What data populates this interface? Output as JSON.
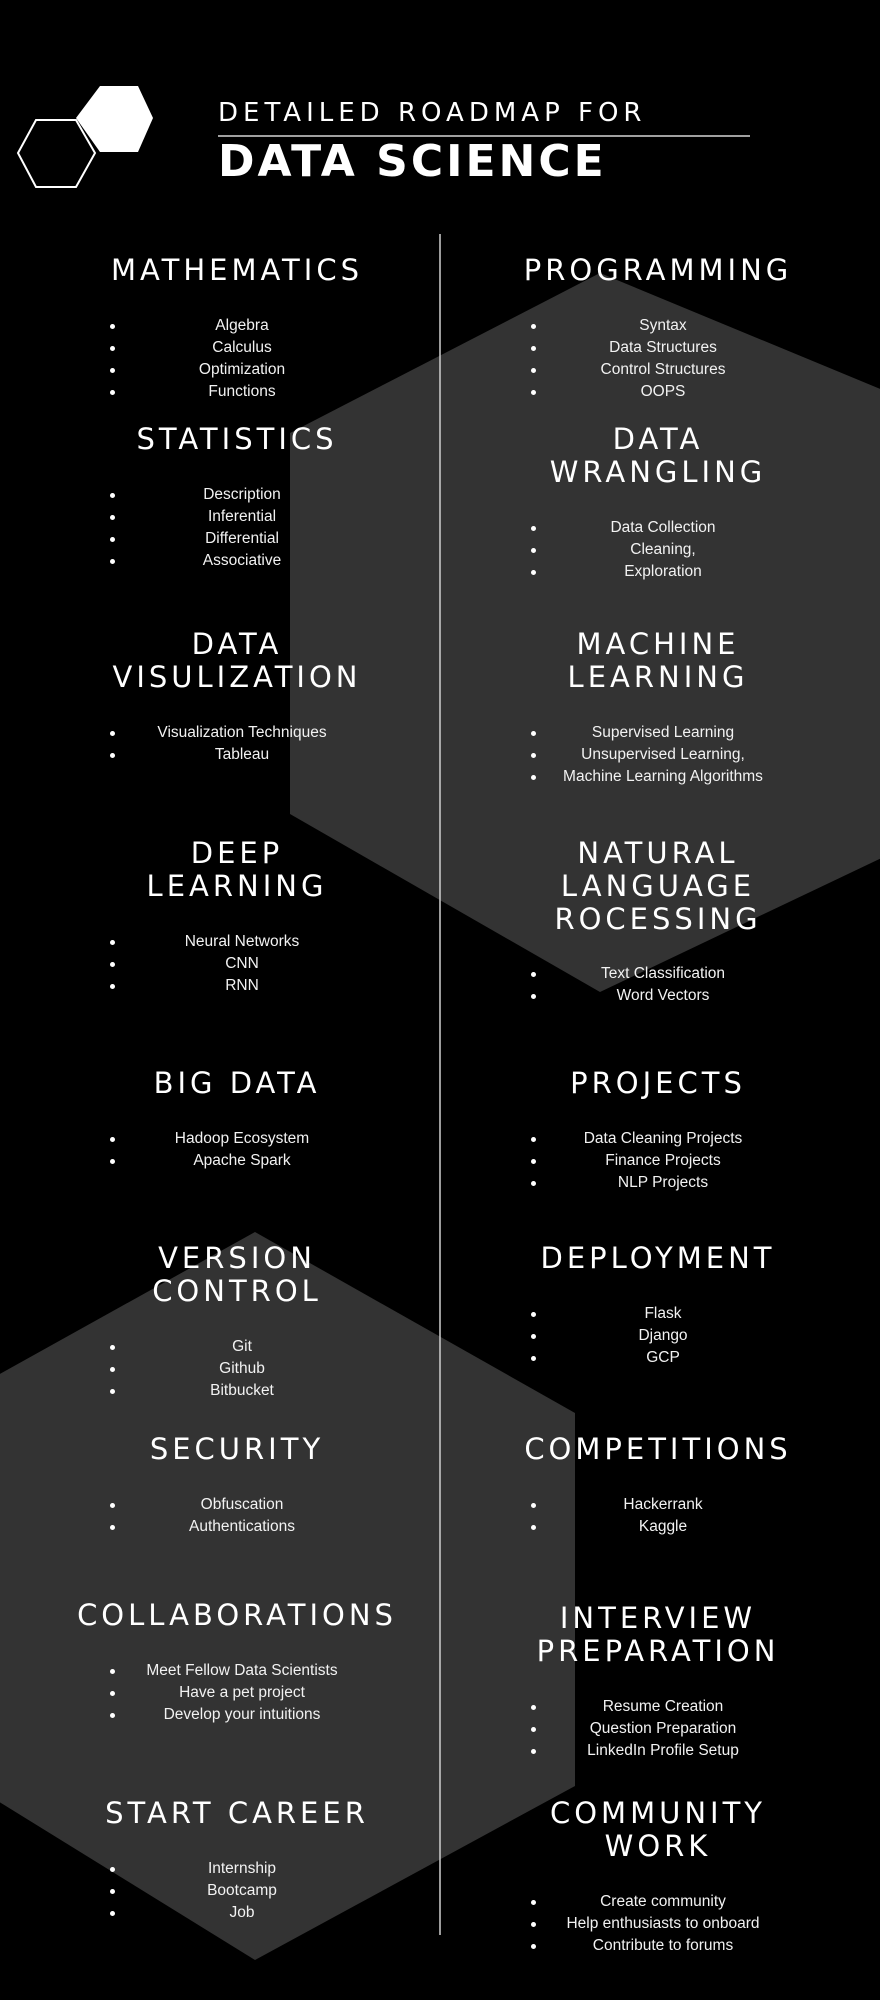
{
  "header": {
    "subtitle": "DETAILED ROADMAP FOR",
    "title": "DATA SCIENCE"
  },
  "sections": [
    {
      "title": "MATHEMATICS",
      "items": [
        "Algebra",
        "Calculus",
        "Optimization",
        "Functions"
      ]
    },
    {
      "title": "PROGRAMMING",
      "items": [
        "Syntax",
        "Data Structures",
        "Control Structures",
        "OOPS"
      ]
    },
    {
      "title": "STATISTICS",
      "items": [
        "Description",
        "Inferential",
        "Differential",
        "Associative"
      ]
    },
    {
      "title_lines": [
        "DATA",
        "WRANGLING"
      ],
      "items": [
        "Data Collection",
        "Cleaning,",
        "Exploration"
      ]
    },
    {
      "title_lines": [
        "DATA",
        "VISULIZATION"
      ],
      "items": [
        "Visualization Techniques",
        "Tableau"
      ]
    },
    {
      "title_lines": [
        "MACHINE",
        "LEARNING"
      ],
      "items": [
        "Supervised Learning",
        "Unsupervised Learning,",
        "Machine Learning Algorithms"
      ]
    },
    {
      "title_lines": [
        "DEEP",
        "LEARNING"
      ],
      "items": [
        "Neural Networks",
        "CNN",
        "RNN"
      ]
    },
    {
      "title_lines": [
        "NATURAL",
        "LANGUAGE",
        "ROCESSING"
      ],
      "items": [
        "Text Classification",
        "Word Vectors"
      ]
    },
    {
      "title": "BIG DATA",
      "items": [
        "Hadoop Ecosystem",
        "Apache Spark"
      ]
    },
    {
      "title": "PROJECTS",
      "items": [
        "Data Cleaning Projects",
        "Finance Projects",
        "NLP Projects"
      ]
    },
    {
      "title_lines": [
        "VERSION",
        "CONTROL"
      ],
      "items": [
        "Git",
        "Github",
        "Bitbucket"
      ]
    },
    {
      "title": "DEPLOYMENT",
      "items": [
        "Flask",
        "Django",
        "GCP"
      ]
    },
    {
      "title": "SECURITY",
      "items": [
        "Obfuscation",
        "Authentications"
      ]
    },
    {
      "title": "COMPETITIONS",
      "items": [
        "Hackerrank",
        "Kaggle"
      ]
    },
    {
      "title": "COLLABORATIONS",
      "items": [
        "Meet Fellow Data Scientists",
        "Have a pet project",
        "Develop your intuitions"
      ]
    },
    {
      "title_lines": [
        "INTERVIEW",
        "PREPARATION"
      ],
      "items": [
        "Resume Creation",
        "Question Preparation",
        "LinkedIn Profile Setup"
      ]
    },
    {
      "title": "START CAREER",
      "items": [
        "Internship",
        "Bootcamp",
        "Job"
      ]
    },
    {
      "title_lines": [
        "COMMUNITY",
        "WORK"
      ],
      "items": [
        "Create community",
        "Help enthusiasts to onboard",
        "Contribute to forums"
      ]
    }
  ],
  "colors": {
    "background": "#000000",
    "hexagon_fill": "#333333",
    "text": "#ffffff"
  }
}
